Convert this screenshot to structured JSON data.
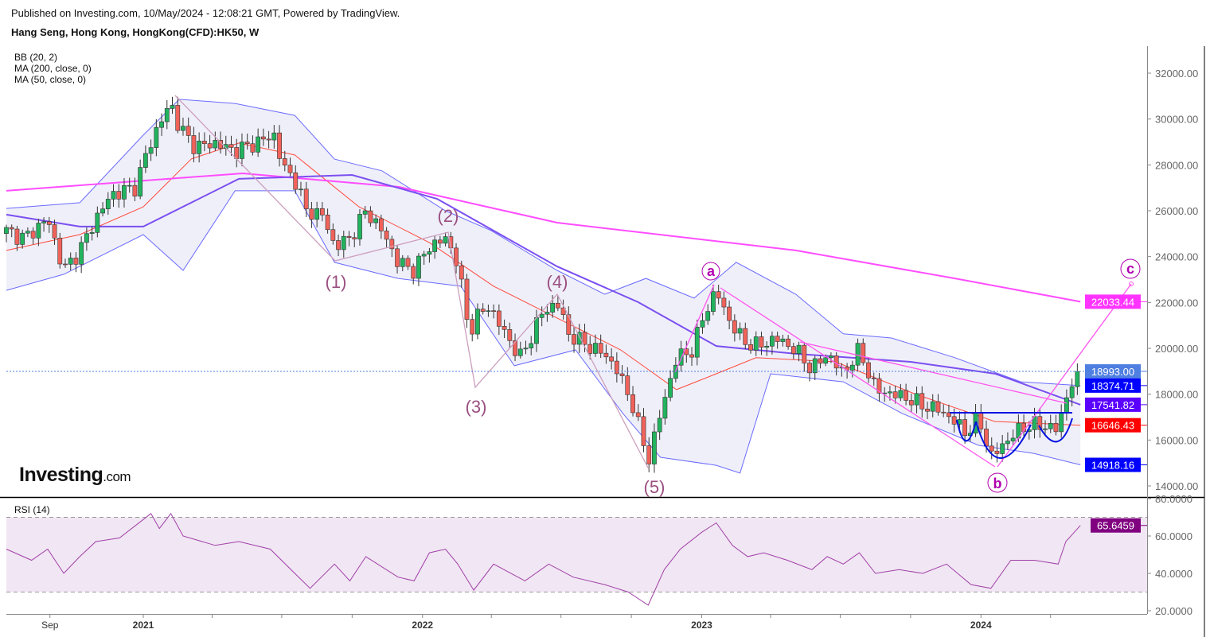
{
  "header": {
    "published": "Published on Investing.com, 10/May/2024 - 12:08:21 GMT, Powered by TradingView.",
    "title": "Hang Seng, Hong Kong, HongKong(CFD):HK50, W"
  },
  "indicators": [
    "BB (20, 2)",
    "MA (200, close, 0)",
    "MA (50, close, 0)"
  ],
  "rsi_label": "RSI (14)",
  "logo": {
    "main": "Investing",
    "suffix": ".com"
  },
  "colors": {
    "up": "#22b35e",
    "down": "#f0625a",
    "bb_band": "#6b6bff",
    "bb_fill": "#efeff9",
    "bb_mid": "#ff4a3d",
    "ma50": "#7a4ff0",
    "ma200": "#ff4dff",
    "rsi_fill": "#f1e6f3",
    "rsi_line": "#a040a8",
    "last_price": "#4f7fe0",
    "wave": "#cc9fbd",
    "abc": "#ff55ee",
    "pattern": "#0010e0"
  },
  "chart_data": {
    "type": "candlestick",
    "interval": "weekly",
    "grid": false,
    "price_axis": {
      "range": [
        13500,
        33200
      ],
      "ticks": [
        "14000.00",
        "16000.00",
        "18000.00",
        "20000.00",
        "22000.00",
        "24000.00",
        "26000.00",
        "28000.00",
        "30000.00",
        "32000.00"
      ]
    },
    "time_axis": {
      "labels": [
        {
          "text": "Sep",
          "date": "2020-09-01"
        },
        {
          "text": "2021",
          "date": "2021-01-01",
          "bold": true
        },
        {
          "text": "2022",
          "date": "2022-01-01",
          "bold": true
        },
        {
          "text": "2023",
          "date": "2023-01-01",
          "bold": true
        },
        {
          "text": "2024",
          "date": "2024-01-01",
          "bold": true
        }
      ],
      "minor_ticks": [
        "2021-04-01",
        "2021-07-01",
        "2021-10-01",
        "2022-04-01",
        "2022-07-01",
        "2022-10-01",
        "2023-04-01",
        "2023-07-01",
        "2023-10-01",
        "2024-04-01"
      ]
    },
    "closes": [
      [
        "2020-07-06",
        25130
      ],
      [
        "2020-07-29",
        24790
      ],
      [
        "2020-08-29",
        25650
      ],
      [
        "2020-09-19",
        23400
      ],
      [
        "2020-10-10",
        24270
      ],
      [
        "2020-10-31",
        25650
      ],
      [
        "2020-11-20",
        26700
      ],
      [
        "2020-12-22",
        27040
      ],
      [
        "2021-01-06",
        28600
      ],
      [
        "2021-01-22",
        29800
      ],
      [
        "2021-02-06",
        30680
      ],
      [
        "2021-02-17",
        29640
      ],
      [
        "2021-03-10",
        28780
      ],
      [
        "2021-04-05",
        28950
      ],
      [
        "2021-05-01",
        28600
      ],
      [
        "2021-05-27",
        28950
      ],
      [
        "2021-06-22",
        29300
      ],
      [
        "2021-07-02",
        27900
      ],
      [
        "2021-07-18",
        27390
      ],
      [
        "2021-08-02",
        26000
      ],
      [
        "2021-08-23",
        25830
      ],
      [
        "2021-09-08",
        24440
      ],
      [
        "2021-09-28",
        24790
      ],
      [
        "2021-10-19",
        26000
      ],
      [
        "2021-11-09",
        25130
      ],
      [
        "2021-11-30",
        23750
      ],
      [
        "2021-12-21",
        23400
      ],
      [
        "2022-01-10",
        24440
      ],
      [
        "2022-01-31",
        24790
      ],
      [
        "2022-02-16",
        23750
      ],
      [
        "2022-03-03",
        20620
      ],
      [
        "2022-03-11",
        21320
      ],
      [
        "2022-03-29",
        21840
      ],
      [
        "2022-04-19",
        20620
      ],
      [
        "2022-05-10",
        19580
      ],
      [
        "2022-06-05",
        21490
      ],
      [
        "2022-06-26",
        22010
      ],
      [
        "2022-07-11",
        20620
      ],
      [
        "2022-08-06",
        20100
      ],
      [
        "2022-08-27",
        19760
      ],
      [
        "2022-09-12",
        19070
      ],
      [
        "2022-10-03",
        17500
      ],
      [
        "2022-10-23",
        15075
      ],
      [
        "2022-11-08",
        17160
      ],
      [
        "2022-11-29",
        19580
      ],
      [
        "2022-12-20",
        19930
      ],
      [
        "2023-01-04",
        21490
      ],
      [
        "2023-01-20",
        22530
      ],
      [
        "2023-02-04",
        21320
      ],
      [
        "2023-02-25",
        20280
      ],
      [
        "2023-03-18",
        20100
      ],
      [
        "2023-04-08",
        20450
      ],
      [
        "2023-05-04",
        19930
      ],
      [
        "2023-05-25",
        19070
      ],
      [
        "2023-06-14",
        19760
      ],
      [
        "2023-07-05",
        18900
      ],
      [
        "2023-07-26",
        19930
      ],
      [
        "2023-08-16",
        18200
      ],
      [
        "2023-09-06",
        18020
      ],
      [
        "2023-09-26",
        17850
      ],
      [
        "2023-10-17",
        17500
      ],
      [
        "2023-11-07",
        17330
      ],
      [
        "2023-11-28",
        16810
      ],
      [
        "2023-12-13",
        16290
      ],
      [
        "2023-12-29",
        16980
      ],
      [
        "2024-01-14",
        15250
      ],
      [
        "2024-01-29",
        15770
      ],
      [
        "2024-02-14",
        16290
      ],
      [
        "2024-02-29",
        16640
      ],
      [
        "2024-03-21",
        16640
      ],
      [
        "2024-04-11",
        16460
      ],
      [
        "2024-04-19",
        17680
      ],
      [
        "2024-04-27",
        18370
      ],
      [
        "2024-05-10",
        18993
      ]
    ],
    "bb_upper": [
      [
        "2020-07-06",
        26100
      ],
      [
        "2020-10-10",
        26350
      ],
      [
        "2021-01-01",
        29300
      ],
      [
        "2021-02-17",
        30860
      ],
      [
        "2021-05-01",
        30680
      ],
      [
        "2021-07-18",
        30160
      ],
      [
        "2021-09-08",
        28250
      ],
      [
        "2021-11-09",
        27740
      ],
      [
        "2022-01-31",
        26000
      ],
      [
        "2022-04-01",
        25130
      ],
      [
        "2022-06-26",
        23400
      ],
      [
        "2022-08-27",
        22360
      ],
      [
        "2022-10-20",
        23050
      ],
      [
        "2022-12-22",
        22190
      ],
      [
        "2023-02-15",
        23750
      ],
      [
        "2023-05-04",
        22360
      ],
      [
        "2023-07-05",
        20630
      ],
      [
        "2023-09-06",
        20450
      ],
      [
        "2023-11-28",
        19590
      ],
      [
        "2024-02-22",
        18540
      ],
      [
        "2024-05-10",
        18374.71
      ]
    ],
    "bb_lower": [
      [
        "2020-07-06",
        22530
      ],
      [
        "2020-09-19",
        23230
      ],
      [
        "2020-11-10",
        24090
      ],
      [
        "2021-01-01",
        24960
      ],
      [
        "2021-02-22",
        23400
      ],
      [
        "2021-05-01",
        26870
      ],
      [
        "2021-07-18",
        26870
      ],
      [
        "2021-09-08",
        23750
      ],
      [
        "2021-11-30",
        23050
      ],
      [
        "2022-02-20",
        22710
      ],
      [
        "2022-05-01",
        19240
      ],
      [
        "2022-07-20",
        19930
      ],
      [
        "2022-09-20",
        17160
      ],
      [
        "2022-11-08",
        15250
      ],
      [
        "2023-01-20",
        14900
      ],
      [
        "2023-02-20",
        14560
      ],
      [
        "2023-04-01",
        18890
      ],
      [
        "2023-07-05",
        18540
      ],
      [
        "2023-09-20",
        17160
      ],
      [
        "2023-12-29",
        15770
      ],
      [
        "2024-03-10",
        15420
      ],
      [
        "2024-05-10",
        14918.16
      ]
    ],
    "bb_basis": [
      [
        "2020-07-06",
        24270
      ],
      [
        "2020-10-10",
        24960
      ],
      [
        "2021-01-01",
        26170
      ],
      [
        "2021-03-05",
        28260
      ],
      [
        "2021-05-06",
        28950
      ],
      [
        "2021-07-18",
        28430
      ],
      [
        "2021-10-10",
        26170
      ],
      [
        "2022-01-10",
        24610
      ],
      [
        "2022-04-04",
        22710
      ],
      [
        "2022-06-26",
        21320
      ],
      [
        "2022-09-17",
        19930
      ],
      [
        "2022-11-29",
        18200
      ],
      [
        "2023-01-20",
        18890
      ],
      [
        "2023-03-13",
        19590
      ],
      [
        "2023-06-25",
        19410
      ],
      [
        "2023-10-06",
        18020
      ],
      [
        "2024-01-19",
        16810
      ],
      [
        "2024-05-10",
        16646.43
      ]
    ],
    "ma50": [
      [
        "2020-07-06",
        25830
      ],
      [
        "2020-10-10",
        25310
      ],
      [
        "2021-01-01",
        25310
      ],
      [
        "2021-05-06",
        27390
      ],
      [
        "2021-10-01",
        27560
      ],
      [
        "2022-01-20",
        26520
      ],
      [
        "2022-06-26",
        23570
      ],
      [
        "2022-10-10",
        22010
      ],
      [
        "2023-01-20",
        20100
      ],
      [
        "2023-05-04",
        19760
      ],
      [
        "2023-10-01",
        19410
      ],
      [
        "2024-01-20",
        18890
      ],
      [
        "2024-05-10",
        17541.82
      ]
    ],
    "ma200": [
      [
        "2020-07-06",
        26870
      ],
      [
        "2021-05-11",
        27630
      ],
      [
        "2021-12-01",
        27040
      ],
      [
        "2022-06-26",
        25480
      ],
      [
        "2023-05-04",
        24270
      ],
      [
        "2023-11-28",
        23050
      ],
      [
        "2024-05-10",
        22033.44
      ]
    ],
    "last_values": [
      {
        "label": "18993.00",
        "value": 18993.0,
        "color": "#4f7fe0"
      },
      {
        "label": "18374.71",
        "value": 18374.71,
        "color": "#0000ff"
      },
      {
        "label": "17541.82",
        "value": 17541.82,
        "color": "#5a00ff"
      },
      {
        "label": "16646.43",
        "value": 16646.43,
        "color": "#ff0000"
      },
      {
        "label": "14918.16",
        "value": 14918.16,
        "color": "#0000ff"
      },
      {
        "label": "22033.44",
        "value": 22033.44,
        "color": "#ff33ff"
      }
    ],
    "rsi": {
      "range": [
        18,
        82
      ],
      "ticks": [
        "20.0000",
        "40.0000",
        "60.0000",
        "80.0000"
      ],
      "bands": [
        30,
        70
      ],
      "last": {
        "label": "65.6459",
        "value": 65.6459,
        "color": "#800080"
      },
      "values": [
        [
          "2020-07-06",
          53
        ],
        [
          "2020-08-08",
          47
        ],
        [
          "2020-08-29",
          53
        ],
        [
          "2020-09-19",
          40
        ],
        [
          "2020-10-10",
          49
        ],
        [
          "2020-10-31",
          57
        ],
        [
          "2020-12-01",
          59
        ],
        [
          "2021-01-11",
          72
        ],
        [
          "2021-01-22",
          64
        ],
        [
          "2021-02-06",
          72
        ],
        [
          "2021-02-22",
          60
        ],
        [
          "2021-04-05",
          55
        ],
        [
          "2021-05-06",
          57
        ],
        [
          "2021-06-16",
          53
        ],
        [
          "2021-07-18",
          40
        ],
        [
          "2021-08-07",
          32
        ],
        [
          "2021-09-08",
          45
        ],
        [
          "2021-09-28",
          36
        ],
        [
          "2021-10-19",
          49
        ],
        [
          "2021-11-30",
          38
        ],
        [
          "2021-12-21",
          36
        ],
        [
          "2022-01-10",
          51
        ],
        [
          "2022-01-31",
          53
        ],
        [
          "2022-02-16",
          45
        ],
        [
          "2022-03-09",
          31
        ],
        [
          "2022-04-04",
          45
        ],
        [
          "2022-05-15",
          36
        ],
        [
          "2022-06-15",
          45
        ],
        [
          "2022-07-17",
          38
        ],
        [
          "2022-08-27",
          34
        ],
        [
          "2022-09-27",
          30
        ],
        [
          "2022-10-23",
          23
        ],
        [
          "2022-11-13",
          42
        ],
        [
          "2022-12-04",
          53
        ],
        [
          "2023-01-01",
          62
        ],
        [
          "2023-01-20",
          67
        ],
        [
          "2023-02-10",
          55
        ],
        [
          "2023-03-02",
          49
        ],
        [
          "2023-03-23",
          51
        ],
        [
          "2023-04-23",
          47
        ],
        [
          "2023-05-25",
          42
        ],
        [
          "2023-06-14",
          49
        ],
        [
          "2023-07-05",
          45
        ],
        [
          "2023-07-26",
          51
        ],
        [
          "2023-08-16",
          40
        ],
        [
          "2023-09-16",
          42
        ],
        [
          "2023-10-17",
          40
        ],
        [
          "2023-11-17",
          45
        ],
        [
          "2023-12-19",
          34
        ],
        [
          "2024-01-14",
          32
        ],
        [
          "2024-02-09",
          47
        ],
        [
          "2024-03-11",
          47
        ],
        [
          "2024-04-11",
          45
        ],
        [
          "2024-04-21",
          57
        ],
        [
          "2024-05-10",
          65.6459
        ]
      ]
    },
    "annotations": {
      "wave_labels": [
        "(1)",
        "(2)",
        "(3)",
        "(4)",
        "(5)"
      ],
      "abc_labels": [
        "a",
        "b",
        "c"
      ]
    }
  }
}
